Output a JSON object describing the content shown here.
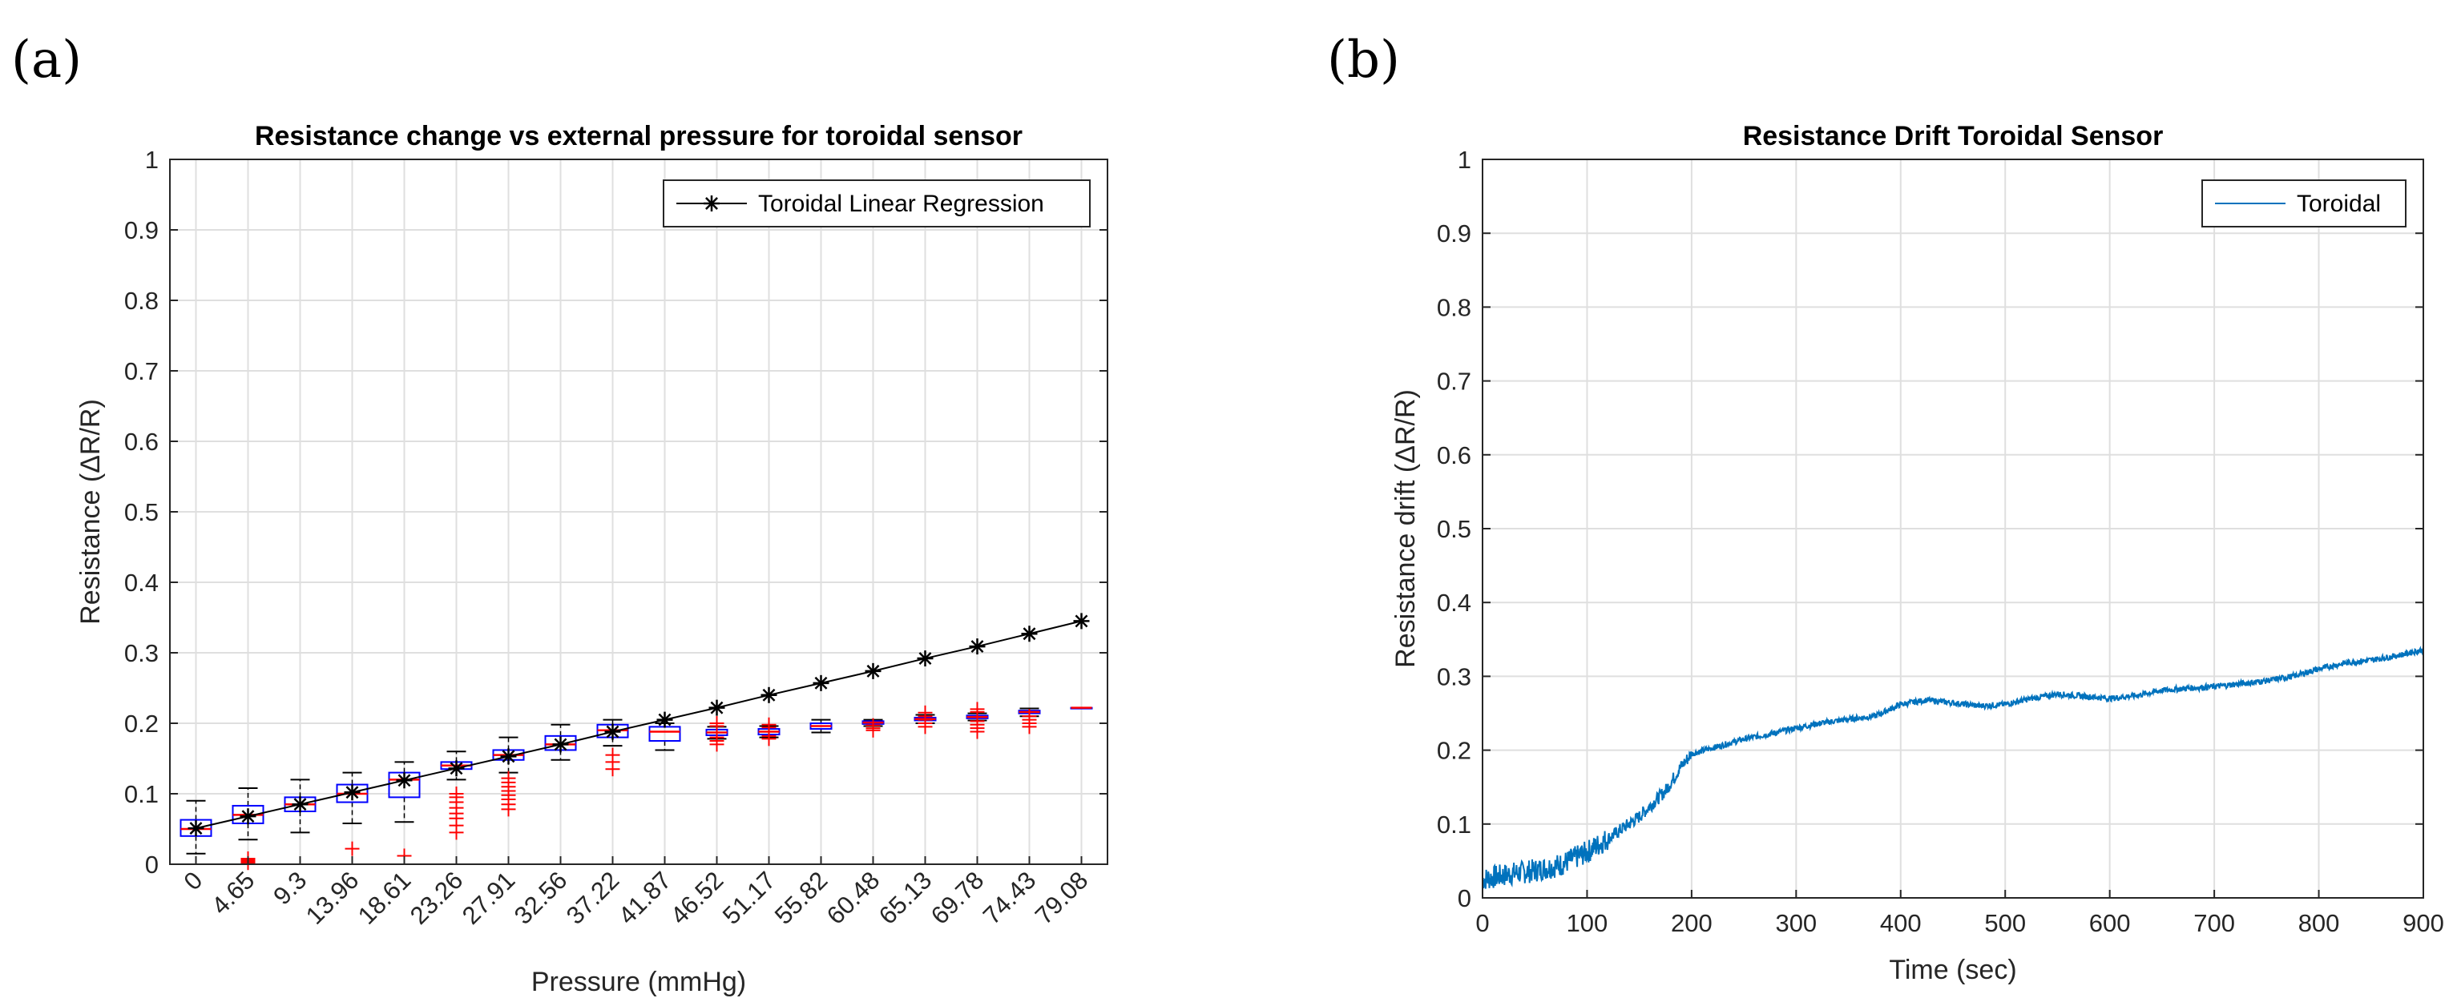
{
  "panels": {
    "a_label": "(a)",
    "b_label": "(b)"
  },
  "chart_data": [
    {
      "type": "box",
      "title": "Resistance change vs external pressure for toroidal sensor",
      "xlabel": "Pressure (mmHg)",
      "ylabel": "Resistance (ΔR/R)",
      "ylim": [
        0,
        1
      ],
      "yticks": [
        "0",
        "0.1",
        "0.2",
        "0.3",
        "0.4",
        "0.5",
        "0.6",
        "0.7",
        "0.8",
        "0.9",
        "1"
      ],
      "categories": [
        "0",
        "4.65",
        "9.3",
        "13.96",
        "18.61",
        "23.26",
        "27.91",
        "32.56",
        "37.22",
        "41.87",
        "46.52",
        "51.17",
        "55.82",
        "60.48",
        "65.13",
        "69.78",
        "74.43",
        "79.08"
      ],
      "grid": true,
      "legend": {
        "placement": "top-right",
        "entries": [
          "Toroidal Linear Regression"
        ]
      },
      "colors": {
        "box": "#0000ff",
        "median": "#ff0000",
        "outlier": "#ff0000",
        "whisker": "#000000",
        "regression": "#000000"
      },
      "boxes": [
        {
          "q1": 0.04,
          "median": 0.05,
          "q3": 0.063,
          "whislo": 0.015,
          "whishi": 0.09,
          "outliers": []
        },
        {
          "q1": 0.058,
          "median": 0.07,
          "q3": 0.083,
          "whislo": 0.035,
          "whishi": 0.108,
          "outliers": [
            0.002,
            0.004,
            0.006,
            0.008
          ]
        },
        {
          "q1": 0.075,
          "median": 0.085,
          "q3": 0.095,
          "whislo": 0.045,
          "whishi": 0.12,
          "outliers": []
        },
        {
          "q1": 0.088,
          "median": 0.1,
          "q3": 0.113,
          "whislo": 0.058,
          "whishi": 0.13,
          "outliers": [
            0.022
          ]
        },
        {
          "q1": 0.095,
          "median": 0.12,
          "q3": 0.13,
          "whislo": 0.06,
          "whishi": 0.145,
          "outliers": [
            0.012
          ]
        },
        {
          "q1": 0.135,
          "median": 0.14,
          "q3": 0.145,
          "whislo": 0.12,
          "whishi": 0.16,
          "outliers": [
            0.045,
            0.055,
            0.065,
            0.072,
            0.08,
            0.088,
            0.095,
            0.1
          ]
        },
        {
          "q1": 0.148,
          "median": 0.155,
          "q3": 0.162,
          "whislo": 0.13,
          "whishi": 0.18,
          "outliers": [
            0.078,
            0.085,
            0.092,
            0.098,
            0.104,
            0.11,
            0.116,
            0.122
          ]
        },
        {
          "q1": 0.162,
          "median": 0.17,
          "q3": 0.182,
          "whislo": 0.148,
          "whishi": 0.198,
          "outliers": []
        },
        {
          "q1": 0.18,
          "median": 0.19,
          "q3": 0.198,
          "whislo": 0.168,
          "whishi": 0.205,
          "outliers": [
            0.135,
            0.145,
            0.155
          ]
        },
        {
          "q1": 0.175,
          "median": 0.188,
          "q3": 0.195,
          "whislo": 0.162,
          "whishi": 0.2,
          "outliers": []
        },
        {
          "q1": 0.183,
          "median": 0.187,
          "q3": 0.191,
          "whislo": 0.178,
          "whishi": 0.195,
          "outliers": [
            0.17,
            0.175,
            0.18,
            0.196,
            0.2
          ]
        },
        {
          "q1": 0.184,
          "median": 0.188,
          "q3": 0.192,
          "whislo": 0.18,
          "whishi": 0.196,
          "outliers": [
            0.178,
            0.182,
            0.194,
            0.198
          ]
        },
        {
          "q1": 0.192,
          "median": 0.196,
          "q3": 0.2,
          "whislo": 0.187,
          "whishi": 0.205,
          "outliers": []
        },
        {
          "q1": 0.199,
          "median": 0.201,
          "q3": 0.203,
          "whislo": 0.196,
          "whishi": 0.205,
          "outliers": [
            0.19,
            0.193,
            0.197
          ]
        },
        {
          "q1": 0.204,
          "median": 0.206,
          "q3": 0.208,
          "whislo": 0.2,
          "whishi": 0.212,
          "outliers": [
            0.195,
            0.2,
            0.205,
            0.21,
            0.215
          ]
        },
        {
          "q1": 0.207,
          "median": 0.209,
          "q3": 0.211,
          "whislo": 0.204,
          "whishi": 0.214,
          "outliers": [
            0.188,
            0.193,
            0.198,
            0.203,
            0.216,
            0.22
          ]
        },
        {
          "q1": 0.214,
          "median": 0.216,
          "q3": 0.218,
          "whislo": 0.21,
          "whishi": 0.221,
          "outliers": [
            0.195,
            0.2,
            0.205,
            0.21
          ]
        },
        {
          "q1": 0.222,
          "median": 0.222,
          "q3": 0.222,
          "whislo": 0.222,
          "whishi": 0.222,
          "outliers": []
        }
      ],
      "series": [
        {
          "name": "Toroidal Linear Regression",
          "marker": "*",
          "values": [
            0.051,
            0.068,
            0.085,
            0.102,
            0.119,
            0.136,
            0.153,
            0.17,
            0.188,
            0.205,
            0.222,
            0.24,
            0.257,
            0.274,
            0.292,
            0.309,
            0.327,
            0.345
          ]
        }
      ]
    },
    {
      "type": "line",
      "title": "Resistance Drift Toroidal Sensor",
      "xlabel": "Time (sec)",
      "ylabel": "Resistance drift (ΔR/R)",
      "xlim": [
        0,
        900
      ],
      "ylim": [
        0,
        1
      ],
      "xticks": [
        "0",
        "100",
        "200",
        "300",
        "400",
        "500",
        "600",
        "700",
        "800",
        "900"
      ],
      "yticks": [
        "0",
        "0.1",
        "0.2",
        "0.3",
        "0.4",
        "0.5",
        "0.6",
        "0.7",
        "0.8",
        "0.9",
        "1"
      ],
      "grid": true,
      "legend": {
        "placement": "top-right",
        "entries": [
          "Toroidal"
        ]
      },
      "colors": {
        "line": "#0072bd"
      },
      "series": [
        {
          "name": "Toroidal",
          "x": [
            0,
            25,
            50,
            75,
            100,
            125,
            150,
            175,
            190,
            200,
            225,
            250,
            275,
            300,
            325,
            350,
            375,
            400,
            425,
            450,
            475,
            500,
            525,
            550,
            575,
            600,
            625,
            650,
            675,
            700,
            725,
            750,
            775,
            800,
            825,
            850,
            875,
            900
          ],
          "y": [
            0.025,
            0.032,
            0.037,
            0.045,
            0.062,
            0.085,
            0.11,
            0.145,
            0.178,
            0.195,
            0.205,
            0.215,
            0.222,
            0.23,
            0.237,
            0.242,
            0.246,
            0.262,
            0.268,
            0.264,
            0.26,
            0.262,
            0.27,
            0.276,
            0.273,
            0.27,
            0.274,
            0.281,
            0.284,
            0.286,
            0.29,
            0.294,
            0.3,
            0.31,
            0.318,
            0.322,
            0.328,
            0.336
          ]
        }
      ]
    }
  ]
}
